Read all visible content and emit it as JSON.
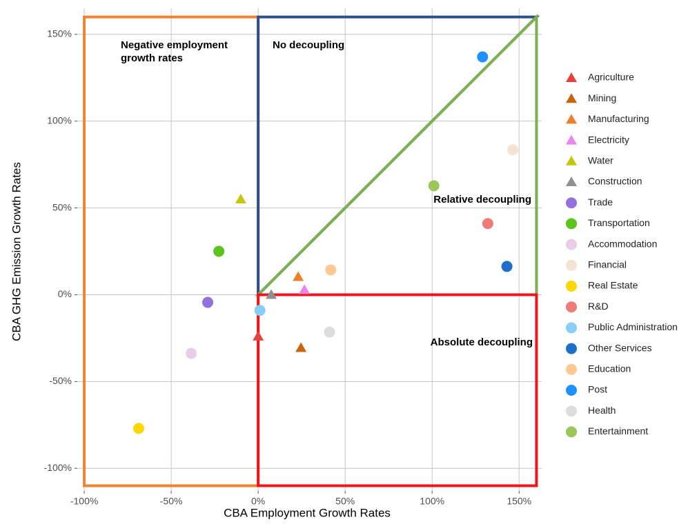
{
  "chart_data": {
    "type": "scatter",
    "x_label": "CBA Employment Growth Rates",
    "y_label": "CBA GHG Emission Growth Rates",
    "xlim": [
      -104,
      163
    ],
    "ylim": [
      -113,
      165
    ],
    "xticks": [
      {
        "value": -100,
        "label": "-100%"
      },
      {
        "value": -50,
        "label": "-50%"
      },
      {
        "value": 0,
        "label": "0%"
      },
      {
        "value": 50,
        "label": "50%"
      },
      {
        "value": 100,
        "label": "100%"
      },
      {
        "value": 150,
        "label": "150%"
      }
    ],
    "yticks": [
      {
        "value": -100,
        "label": "-100%"
      },
      {
        "value": -50,
        "label": "-50%"
      },
      {
        "value": 0,
        "label": "0%"
      },
      {
        "value": 50,
        "label": "50%"
      },
      {
        "value": 100,
        "label": "100%"
      },
      {
        "value": 150,
        "label": "150%"
      }
    ],
    "grid": true,
    "legend": "right",
    "regions": [
      {
        "label": "Negative employment growth rates",
        "color": "#ef8234",
        "x": [
          -100,
          0,
          0,
          -100
        ],
        "y": [
          160,
          160,
          -110,
          -110
        ]
      },
      {
        "label": "No decoupling",
        "color": "#2f4f8a",
        "x": [
          0,
          0,
          160
        ],
        "y": [
          0,
          160,
          160
        ]
      },
      {
        "label": "Relative decoupling",
        "color": "#7bb150",
        "x": [
          0,
          160,
          160
        ],
        "y": [
          0,
          160,
          0
        ]
      },
      {
        "label": "Absolute decoupling",
        "color": "#f0141b",
        "x": [
          0,
          160,
          160,
          0
        ],
        "y": [
          0,
          0,
          -110,
          -110
        ]
      }
    ],
    "series": [
      {
        "name": "Agriculture",
        "color": "#e8413c",
        "marker": "triangle",
        "x": [
          0
        ],
        "values": [
          -24
        ]
      },
      {
        "name": "Mining",
        "color": "#c8650c",
        "marker": "triangle",
        "x": [
          24.6
        ],
        "values": [
          -30.6
        ]
      },
      {
        "name": "Manufacturing",
        "color": "#ec7f2a",
        "marker": "triangle",
        "x": [
          23
        ],
        "values": [
          10.3
        ]
      },
      {
        "name": "Electricity",
        "color": "#ee82ee",
        "marker": "triangle",
        "x": [
          26.6
        ],
        "values": [
          2.8
        ]
      },
      {
        "name": "Water",
        "color": "#c6c60b",
        "marker": "triangle",
        "x": [
          -10
        ],
        "values": [
          55
        ]
      },
      {
        "name": "Construction",
        "color": "#8f8f8f",
        "marker": "triangle",
        "x": [
          7.5
        ],
        "values": [
          0
        ]
      },
      {
        "name": "Trade",
        "color": "#9370db",
        "marker": "circle",
        "x": [
          -29
        ],
        "values": [
          -4.4
        ]
      },
      {
        "name": "Transportation",
        "color": "#5bc41a",
        "marker": "circle",
        "x": [
          -22.6
        ],
        "values": [
          25
        ]
      },
      {
        "name": "Accommodation",
        "color": "#e8cde8",
        "marker": "circle",
        "x": [
          -38.5
        ],
        "values": [
          -33.8
        ]
      },
      {
        "name": "Financial",
        "color": "#f5e3d2",
        "marker": "circle",
        "x": [
          146.4
        ],
        "values": [
          83.5
        ]
      },
      {
        "name": "Real Estate",
        "color": "#ffd700",
        "marker": "circle",
        "x": [
          -68.7
        ],
        "values": [
          -77
        ]
      },
      {
        "name": "R&D",
        "color": "#ee7a7a",
        "marker": "circle",
        "x": [
          132
        ],
        "values": [
          41
        ]
      },
      {
        "name": "Public Administration",
        "color": "#87cefa",
        "marker": "circle",
        "x": [
          1
        ],
        "values": [
          -9
        ]
      },
      {
        "name": "Other Services",
        "color": "#1e6fc9",
        "marker": "circle",
        "x": [
          143
        ],
        "values": [
          16.3
        ]
      },
      {
        "name": "Education",
        "color": "#fdc891",
        "marker": "circle",
        "x": [
          41.7
        ],
        "values": [
          14.3
        ]
      },
      {
        "name": "Post",
        "color": "#1e90ff",
        "marker": "circle",
        "x": [
          129
        ],
        "values": [
          137
        ]
      },
      {
        "name": "Health",
        "color": "#dcdcdc",
        "marker": "circle",
        "x": [
          41
        ],
        "values": [
          -21.5
        ]
      },
      {
        "name": "Entertainment",
        "color": "#9bc75a",
        "marker": "circle",
        "x": [
          101
        ],
        "values": [
          62.8
        ]
      }
    ]
  }
}
